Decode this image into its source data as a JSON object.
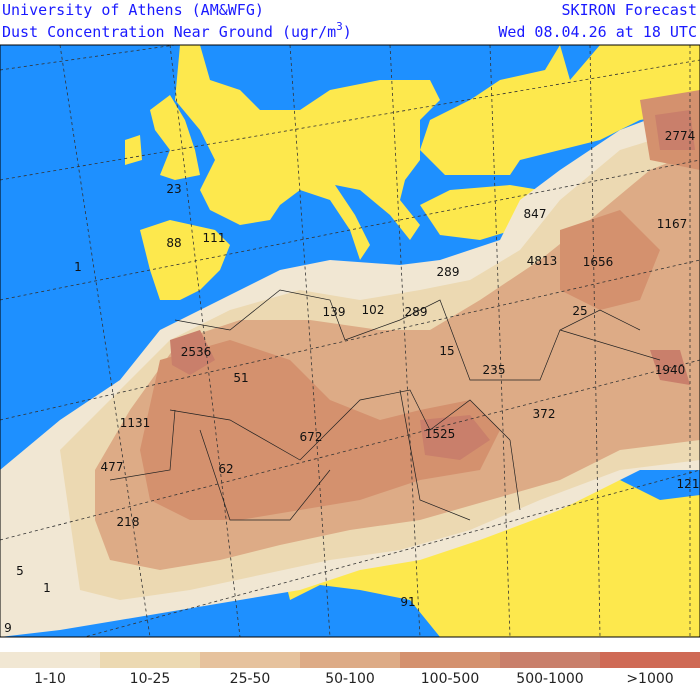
{
  "header": {
    "title_left": "University of Athens (AM&WFG)",
    "subtitle_left": "Dust Concentration Near Ground (ugr/m",
    "unit_superscript": "3",
    "subtitle_close": ")",
    "title_right": "SKIRON Forecast",
    "subtitle_right": "Wed 08.04.26 at 18 UTC"
  },
  "map_labels": [
    "2774",
    "847",
    "1167",
    "4813",
    "1656",
    "23",
    "88",
    "111",
    "1",
    "289",
    "139",
    "102",
    "289",
    "25",
    "2536",
    "15",
    "235",
    "1940",
    "51",
    "1131",
    "372",
    "672",
    "1525",
    "62",
    "477",
    "121",
    "218",
    "5",
    "1",
    "91",
    "9"
  ],
  "legend": [
    {
      "label": "1-10",
      "color": "#f1e7d3"
    },
    {
      "label": "10-25",
      "color": "#ecd9b2"
    },
    {
      "label": "25-50",
      "color": "#e6c29d"
    },
    {
      "label": "50-100",
      "color": "#ddab86"
    },
    {
      "label": "100-500",
      "color": "#d4916e"
    },
    {
      "label": "500-1000",
      "color": "#c97f6b"
    },
    {
      "label": ">1000",
      "color": "#cf6a55"
    }
  ]
}
